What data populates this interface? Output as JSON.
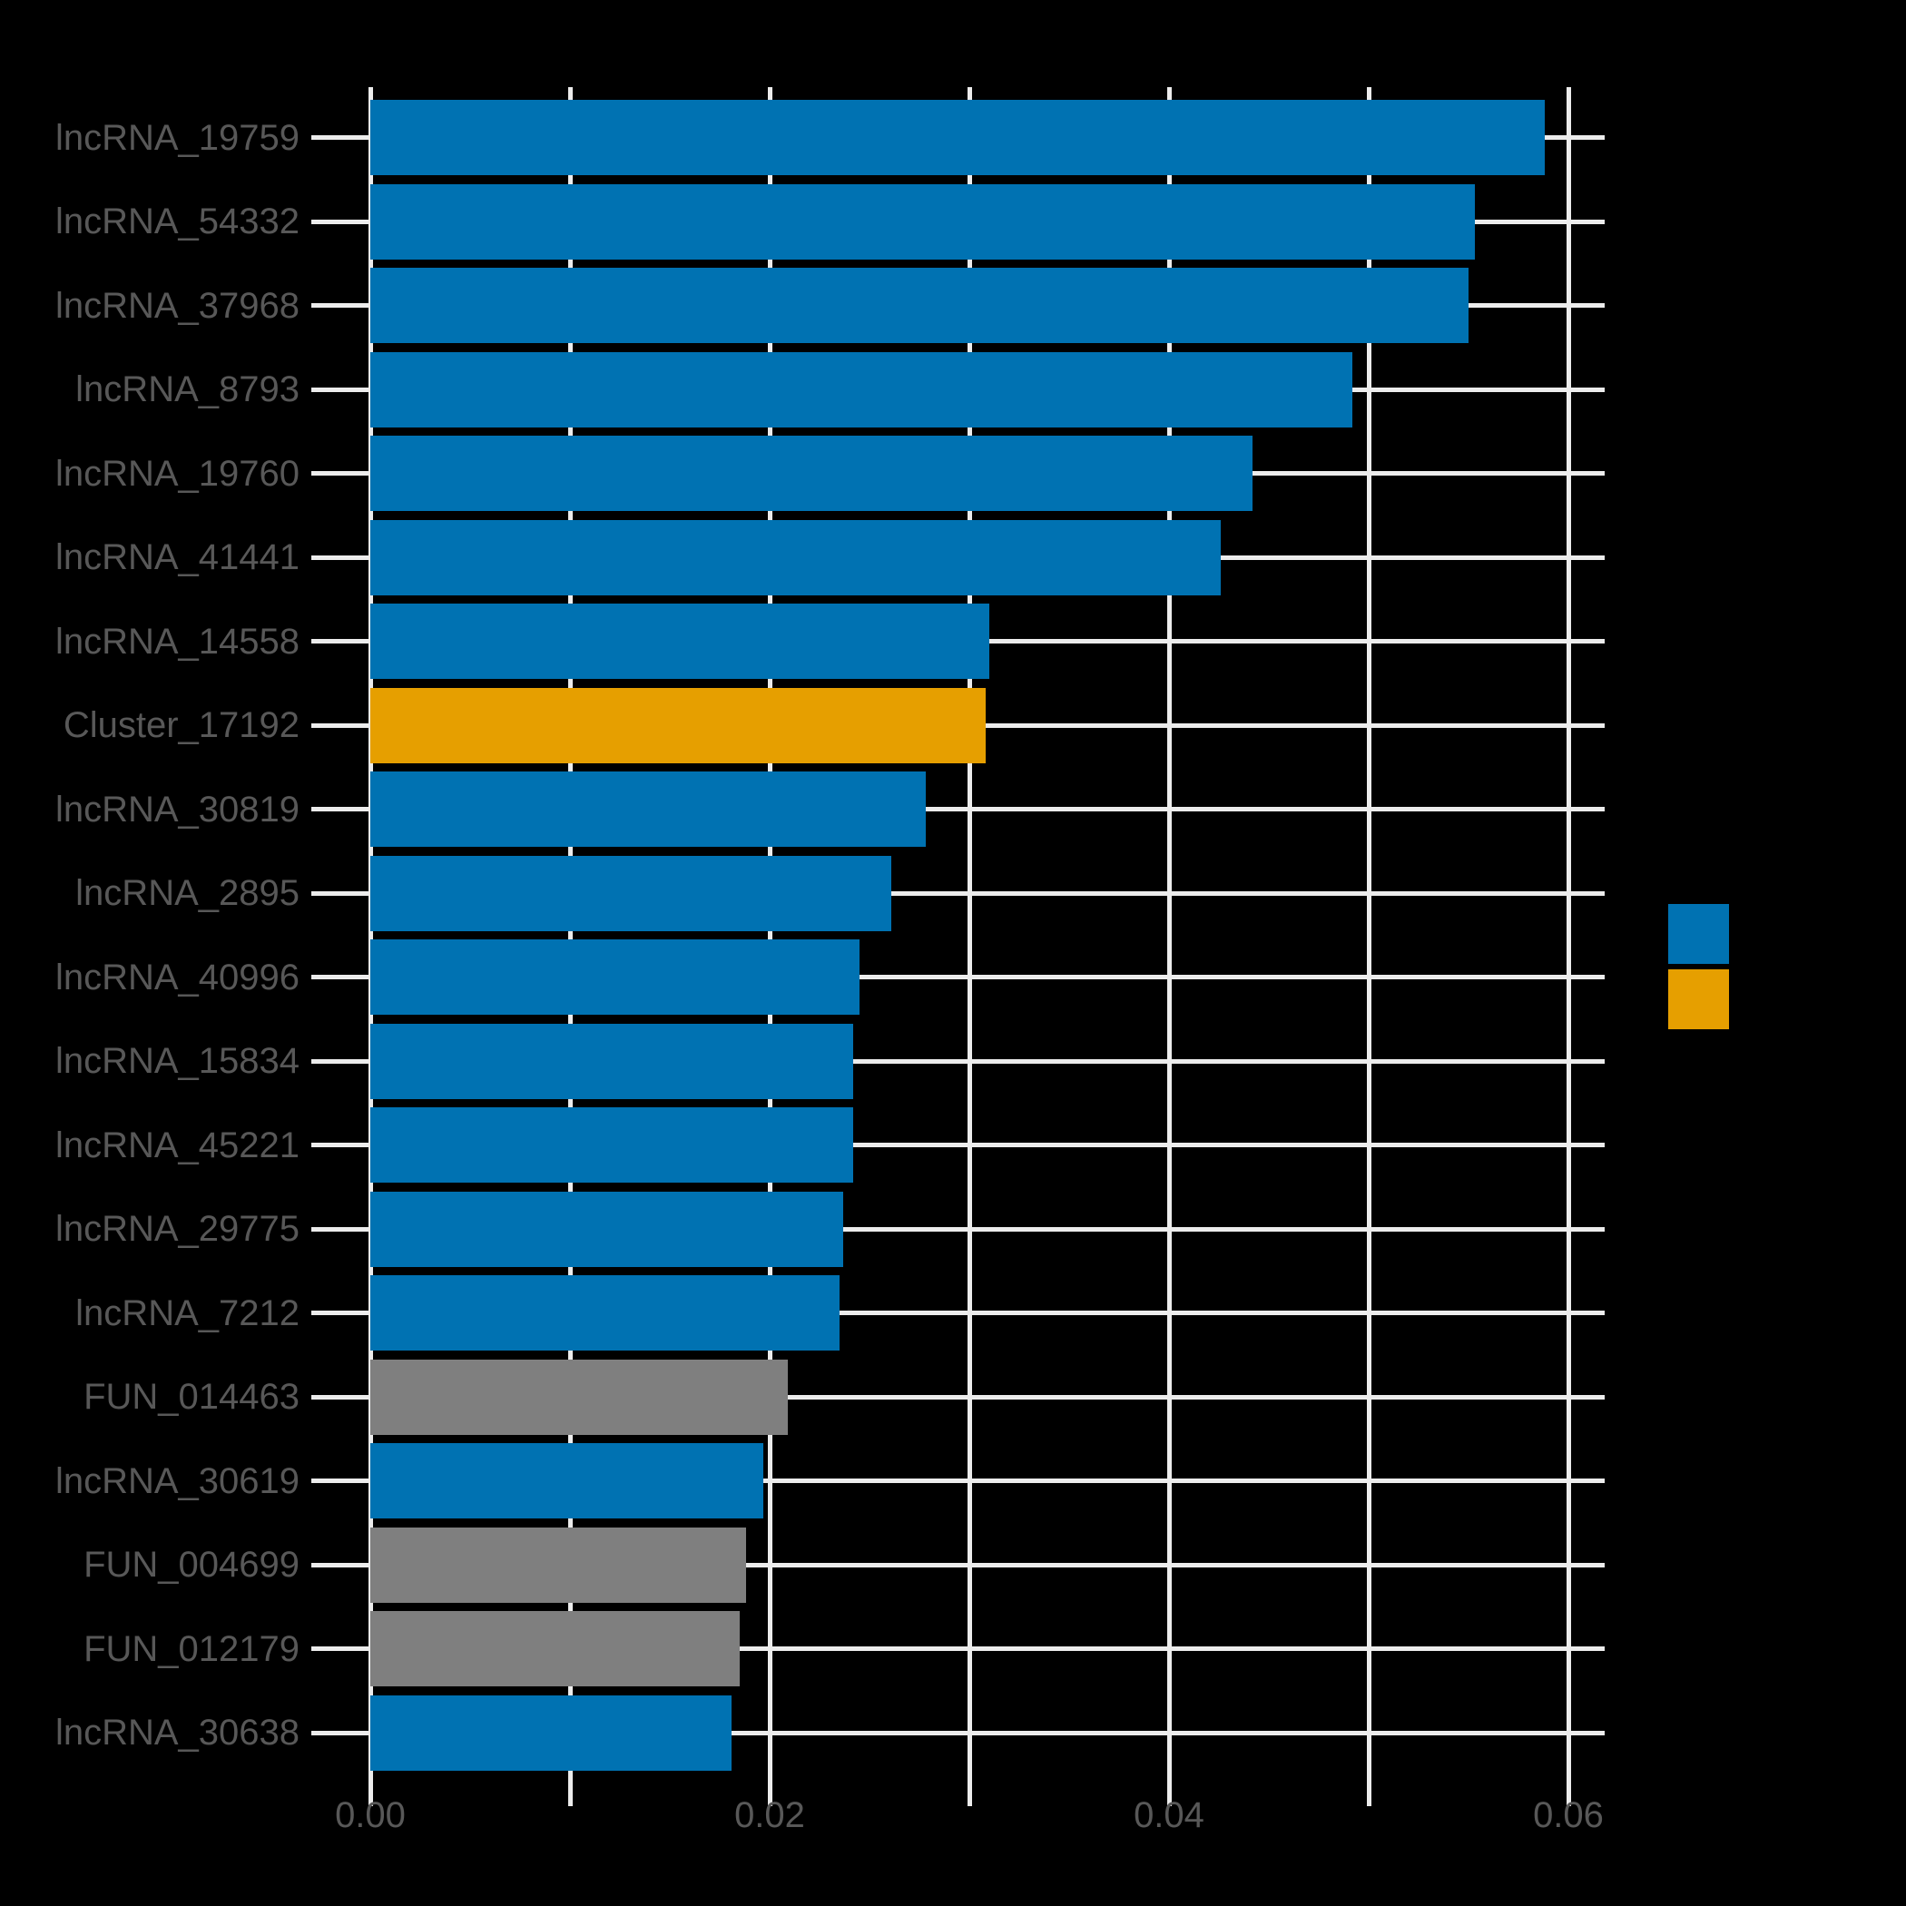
{
  "chart_data": {
    "type": "bar",
    "orientation": "horizontal",
    "title": "",
    "xlabel": "",
    "ylabel": "",
    "categories": [
      "lncRNA_19759",
      "lncRNA_54332",
      "lncRNA_37968",
      "lncRNA_8793",
      "lncRNA_19760",
      "lncRNA_41441",
      "lncRNA_14558",
      "Cluster_17192",
      "lncRNA_30819",
      "lncRNA_2895",
      "lncRNA_40996",
      "lncRNA_15834",
      "lncRNA_45221",
      "lncRNA_29775",
      "lncRNA_7212",
      "FUN_014463",
      "lncRNA_30619",
      "FUN_004699",
      "FUN_012179",
      "lncRNA_30638"
    ],
    "values": [
      0.0588,
      0.0553,
      0.055,
      0.0492,
      0.0442,
      0.0426,
      0.031,
      0.0308,
      0.0278,
      0.0261,
      0.0245,
      0.0242,
      0.0242,
      0.0237,
      0.0235,
      0.0209,
      0.0197,
      0.0188,
      0.0185,
      0.0181
    ],
    "bar_colors": [
      "blue",
      "blue",
      "blue",
      "blue",
      "blue",
      "blue",
      "blue",
      "orange",
      "blue",
      "blue",
      "blue",
      "blue",
      "blue",
      "blue",
      "blue",
      "gray",
      "blue",
      "gray",
      "gray",
      "blue"
    ],
    "xlim": [
      0,
      0.0618
    ],
    "x_major_ticks": [
      0.0,
      0.01,
      0.02,
      0.03,
      0.04,
      0.05,
      0.06
    ],
    "x_tick_labels": [
      {
        "value": 0.0,
        "label": "0.00"
      },
      {
        "value": 0.02,
        "label": "0.02"
      },
      {
        "value": 0.04,
        "label": "0.04"
      },
      {
        "value": 0.06,
        "label": "0.06"
      }
    ],
    "grid": "major gridlines on, white on black panel",
    "legend_position": "right",
    "legend_entries": [
      {
        "color_key": "blue",
        "label": ""
      },
      {
        "color_key": "orange",
        "label": ""
      }
    ]
  },
  "colors": {
    "background": "#000000",
    "bar_blue": "#0072B2",
    "bar_orange": "#E69F00",
    "bar_gray": "#7F7F7F",
    "grid": "#ECECEC",
    "tick": "#ECECEC",
    "text": "#585858"
  }
}
